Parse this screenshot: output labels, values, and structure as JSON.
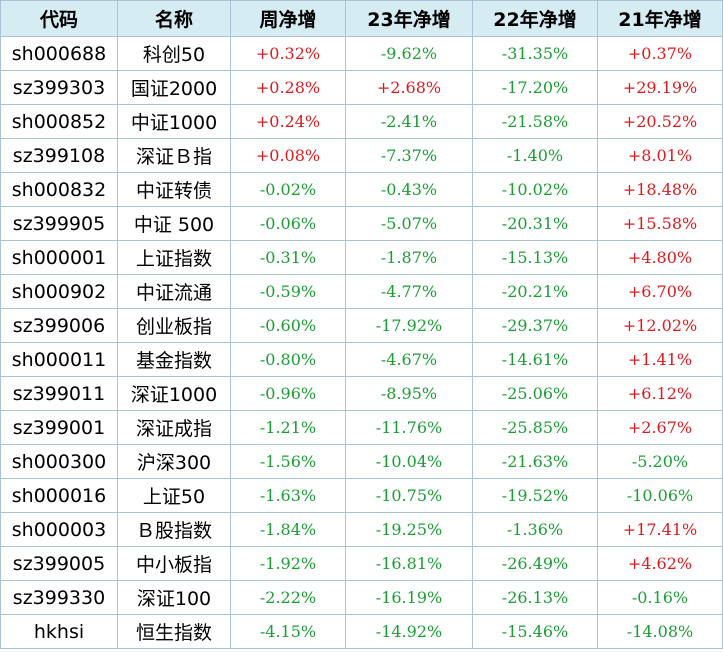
{
  "table": {
    "headers": [
      "代码",
      "名称",
      "周净增",
      "23年净增",
      "22年净增",
      "21年净增"
    ],
    "rows": [
      [
        "sh000688",
        "科创50",
        "+0.32%",
        "-9.62%",
        "-31.35%",
        "+0.37%"
      ],
      [
        "sz399303",
        "国证2000",
        "+0.28%",
        "+2.68%",
        "-17.20%",
        "+29.19%"
      ],
      [
        "sh000852",
        "中证1000",
        "+0.24%",
        "-2.41%",
        "-21.58%",
        "+20.52%"
      ],
      [
        "sz399108",
        "深证Ｂ指",
        "+0.08%",
        "-7.37%",
        "-1.40%",
        "+8.01%"
      ],
      [
        "sh000832",
        "中证转债",
        "-0.02%",
        "-0.43%",
        "-10.02%",
        "+18.48%"
      ],
      [
        "sz399905",
        "中证 500",
        "-0.06%",
        "-5.07%",
        "-20.31%",
        "+15.58%"
      ],
      [
        "sh000001",
        "上证指数",
        "-0.31%",
        "-1.87%",
        "-15.13%",
        "+4.80%"
      ],
      [
        "sh000902",
        "中证流通",
        "-0.59%",
        "-4.77%",
        "-20.21%",
        "+6.70%"
      ],
      [
        "sz399006",
        "创业板指",
        "-0.60%",
        "-17.92%",
        "-29.37%",
        "+12.02%"
      ],
      [
        "sh000011",
        "基金指数",
        "-0.80%",
        "-4.67%",
        "-14.61%",
        "+1.41%"
      ],
      [
        "sz399011",
        "深证1000",
        "-0.96%",
        "-8.95%",
        "-25.06%",
        "+6.12%"
      ],
      [
        "sz399001",
        "深证成指",
        "-1.21%",
        "-11.76%",
        "-25.85%",
        "+2.67%"
      ],
      [
        "sh000300",
        "沪深300",
        "-1.56%",
        "-10.04%",
        "-21.63%",
        "-5.20%"
      ],
      [
        "sh000016",
        "上证50",
        "-1.63%",
        "-10.75%",
        "-19.52%",
        "-10.06%"
      ],
      [
        "sh000003",
        "Ｂ股指数",
        "-1.84%",
        "-19.25%",
        "-1.36%",
        "+17.41%"
      ],
      [
        "sz399005",
        "中小板指",
        "-1.92%",
        "-16.81%",
        "-26.49%",
        "+4.62%"
      ],
      [
        "sz399330",
        "深证100",
        "-2.22%",
        "-16.19%",
        "-26.13%",
        "-0.16%"
      ],
      [
        "hkhsi",
        "恒生指数",
        "-4.15%",
        "-14.92%",
        "-15.46%",
        "-14.08%"
      ]
    ]
  },
  "colors": {
    "header_bg": "#d6ecf3",
    "grid_line": "#a9c4d6",
    "positive": "#e0191d",
    "negative": "#1a9e34"
  }
}
